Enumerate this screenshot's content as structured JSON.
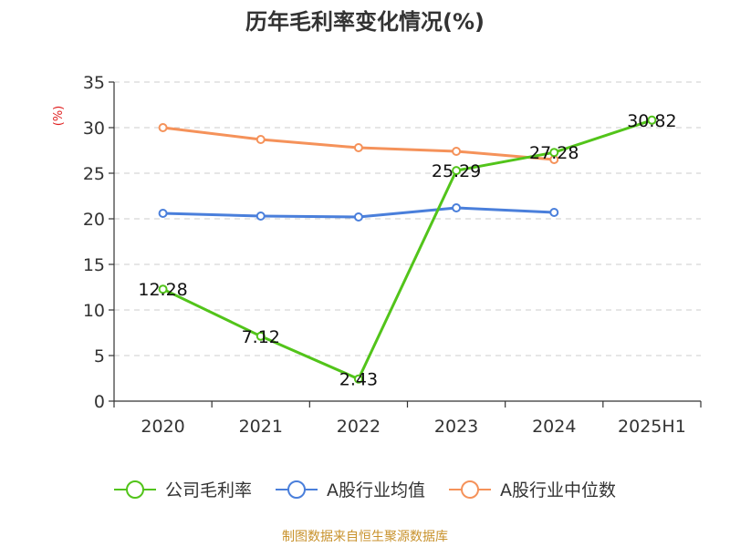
{
  "chart_data": {
    "type": "line",
    "title": "历年毛利率变化情况(%)",
    "ylabel": "(%)",
    "categories": [
      "2020",
      "2021",
      "2022",
      "2023",
      "2024",
      "2025H1"
    ],
    "ylim": [
      0,
      35
    ],
    "yticks": [
      0,
      5,
      10,
      15,
      20,
      25,
      30,
      35
    ],
    "grid": true,
    "legend_position": "bottom",
    "series": [
      {
        "name": "公司毛利率",
        "color": "#52c41a",
        "values": [
          12.28,
          7.12,
          2.43,
          25.29,
          27.28,
          30.82
        ],
        "labels": [
          "12.28",
          "7.12",
          "2.43",
          "25.29",
          "27.28",
          "30.82"
        ]
      },
      {
        "name": "A股行业均值",
        "color": "#4a7fdb",
        "values": [
          20.6,
          20.3,
          20.2,
          21.2,
          20.7,
          null
        ],
        "labels": []
      },
      {
        "name": "A股行业中位数",
        "color": "#f5925a",
        "values": [
          30.0,
          28.7,
          27.8,
          27.4,
          26.5,
          null
        ],
        "labels": []
      }
    ]
  },
  "source_text": "制图数据来自恒生聚源数据库"
}
